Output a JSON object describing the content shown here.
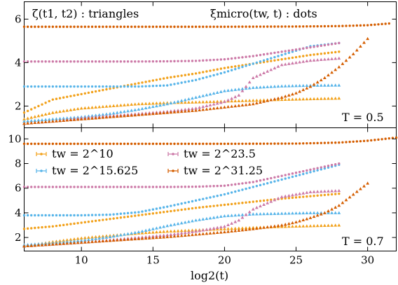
{
  "chart_data": [
    {
      "type": "scatter",
      "panel": "top",
      "title": "",
      "xlabel": "",
      "ylabel": "",
      "xlim": [
        6,
        32
      ],
      "ylim": [
        1.0,
        6.8
      ],
      "yticks": [
        2,
        4,
        6
      ],
      "xticks": [
        10,
        15,
        20,
        25,
        30
      ],
      "grid": false,
      "annotations": {
        "left": "ζ(t1, t2) : triangles",
        "right": "ξmicro(tw, t) : dots",
        "temperature": "T = 0.5"
      },
      "series": [
        {
          "name": "tw = 2^10",
          "color": "#f2a11a",
          "marker": "dot",
          "x": [
            6,
            8,
            10,
            12,
            14,
            16,
            18,
            20,
            22,
            24,
            26,
            28
          ],
          "values": [
            1.7,
            2.3,
            2.55,
            2.8,
            3.05,
            3.3,
            3.5,
            3.75,
            3.95,
            4.15,
            4.35,
            4.5
          ]
        },
        {
          "name": "tw = 2^10",
          "color": "#f2a11a",
          "marker": "triangle",
          "x": [
            6,
            8,
            10,
            12,
            14,
            16,
            18,
            20,
            22,
            24,
            26,
            28
          ],
          "values": [
            1.4,
            1.7,
            1.9,
            2.0,
            2.1,
            2.15,
            2.18,
            2.22,
            2.26,
            2.3,
            2.33,
            2.36
          ]
        },
        {
          "name": "tw = 2^15.625",
          "color": "#56b4e9",
          "marker": "dot",
          "x": [
            6,
            8,
            10,
            12,
            14,
            16,
            18,
            20,
            22,
            24,
            26,
            28
          ],
          "values": [
            2.9,
            2.9,
            2.9,
            2.9,
            2.9,
            2.95,
            3.2,
            3.55,
            3.95,
            4.35,
            4.75,
            4.9
          ]
        },
        {
          "name": "tw = 2^15.625",
          "color": "#56b4e9",
          "marker": "triangle",
          "x": [
            6,
            8,
            10,
            12,
            14,
            16,
            18,
            20,
            22,
            24,
            26,
            28
          ],
          "values": [
            1.3,
            1.4,
            1.5,
            1.65,
            1.85,
            2.1,
            2.4,
            2.7,
            2.85,
            2.92,
            2.95,
            2.96
          ]
        },
        {
          "name": "tw = 2^23.5",
          "color": "#cc79a7",
          "marker": "dot",
          "x": [
            6,
            8,
            10,
            12,
            14,
            16,
            18,
            20,
            22,
            24,
            26,
            28
          ],
          "values": [
            4.05,
            4.05,
            4.05,
            4.05,
            4.05,
            4.06,
            4.08,
            4.15,
            4.3,
            4.5,
            4.7,
            4.9
          ]
        },
        {
          "name": "tw = 2^23.5",
          "color": "#cc79a7",
          "marker": "triangle",
          "x": [
            6,
            8,
            10,
            12,
            14,
            16,
            18,
            20,
            21,
            22,
            24,
            26,
            28
          ],
          "values": [
            1.2,
            1.3,
            1.45,
            1.55,
            1.65,
            1.75,
            1.9,
            2.2,
            2.5,
            3.3,
            3.9,
            4.1,
            4.2
          ]
        },
        {
          "name": "tw = 2^31.25",
          "color": "#d55e00",
          "marker": "dot",
          "x": [
            6,
            10,
            15,
            20,
            25,
            28,
            30,
            31.5
          ],
          "values": [
            5.65,
            5.65,
            5.65,
            5.65,
            5.66,
            5.68,
            5.72,
            5.8
          ]
        },
        {
          "name": "tw = 2^31.25",
          "color": "#d55e00",
          "marker": "triangle",
          "x": [
            6,
            8,
            10,
            12,
            14,
            16,
            18,
            20,
            22,
            24,
            25,
            26,
            27,
            28,
            29,
            30
          ],
          "values": [
            1.2,
            1.3,
            1.4,
            1.5,
            1.6,
            1.7,
            1.8,
            1.95,
            2.1,
            2.4,
            2.6,
            2.9,
            3.3,
            3.8,
            4.4,
            5.1
          ]
        }
      ]
    },
    {
      "type": "scatter",
      "panel": "bottom",
      "title": "",
      "xlabel": "log2(t)",
      "ylabel": "",
      "xlim": [
        6,
        32
      ],
      "ylim": [
        0.9,
        10.9
      ],
      "yticks": [
        2,
        4,
        6,
        8,
        10
      ],
      "xticks": [
        10,
        15,
        20,
        25,
        30
      ],
      "grid": false,
      "annotations": {
        "temperature": "T = 0.7"
      },
      "legend": {
        "placement": "upper-left",
        "entries": [
          {
            "label": "tw = 2^10",
            "color": "#f2a11a"
          },
          {
            "label": "tw = 2^15.625",
            "color": "#56b4e9"
          },
          {
            "label": "tw = 2^23.5",
            "color": "#cc79a7"
          },
          {
            "label": "tw = 2^31.25",
            "color": "#d55e00"
          }
        ]
      },
      "series": [
        {
          "name": "tw = 2^10",
          "color": "#f2a11a",
          "marker": "dot",
          "x": [
            6,
            8,
            10,
            12,
            14,
            16,
            18,
            20,
            22,
            24,
            26,
            28
          ],
          "values": [
            2.7,
            2.9,
            3.2,
            3.5,
            3.8,
            4.1,
            4.4,
            4.65,
            4.9,
            5.15,
            5.35,
            5.55
          ]
        },
        {
          "name": "tw = 2^10",
          "color": "#f2a11a",
          "marker": "triangle",
          "x": [
            6,
            8,
            10,
            12,
            14,
            16,
            18,
            20,
            22,
            24,
            26,
            28
          ],
          "values": [
            1.3,
            1.65,
            1.95,
            2.15,
            2.35,
            2.5,
            2.6,
            2.7,
            2.8,
            2.88,
            2.94,
            3.0
          ]
        },
        {
          "name": "tw = 2^15.625",
          "color": "#56b4e9",
          "marker": "dot",
          "x": [
            6,
            8,
            10,
            12,
            14,
            16,
            18,
            20,
            22,
            24,
            26,
            28
          ],
          "values": [
            3.8,
            3.8,
            3.8,
            3.85,
            4.05,
            4.5,
            5.0,
            5.5,
            6.1,
            6.7,
            7.3,
            7.9
          ]
        },
        {
          "name": "tw = 2^15.625",
          "color": "#56b4e9",
          "marker": "triangle",
          "x": [
            6,
            8,
            10,
            12,
            14,
            16,
            18,
            20,
            22,
            24,
            26,
            28
          ],
          "values": [
            1.4,
            1.55,
            1.75,
            2.05,
            2.45,
            2.95,
            3.4,
            3.75,
            3.9,
            3.95,
            4.0,
            4.0
          ]
        },
        {
          "name": "tw = 2^23.5",
          "color": "#cc79a7",
          "marker": "dot",
          "x": [
            6,
            8,
            10,
            12,
            14,
            16,
            18,
            20,
            22,
            24,
            26,
            28
          ],
          "values": [
            6.1,
            6.1,
            6.1,
            6.1,
            6.1,
            6.1,
            6.12,
            6.2,
            6.5,
            7.0,
            7.5,
            8.0
          ]
        },
        {
          "name": "tw = 2^23.5",
          "color": "#cc79a7",
          "marker": "triangle",
          "x": [
            6,
            8,
            10,
            12,
            14,
            16,
            18,
            20,
            21,
            22,
            24,
            26,
            28
          ],
          "values": [
            1.3,
            1.45,
            1.6,
            1.8,
            2.0,
            2.2,
            2.5,
            2.9,
            3.4,
            4.3,
            5.3,
            5.7,
            5.8
          ]
        },
        {
          "name": "tw = 2^31.25",
          "color": "#d55e00",
          "marker": "dot",
          "x": [
            6,
            10,
            15,
            20,
            25,
            28,
            30,
            32
          ],
          "values": [
            9.6,
            9.6,
            9.6,
            9.6,
            9.62,
            9.7,
            9.85,
            10.1
          ]
        },
        {
          "name": "tw = 2^31.25",
          "color": "#d55e00",
          "marker": "triangle",
          "x": [
            6,
            8,
            10,
            12,
            14,
            16,
            18,
            20,
            22,
            24,
            25,
            26,
            27,
            28,
            29,
            30
          ],
          "values": [
            1.3,
            1.45,
            1.6,
            1.75,
            1.9,
            2.05,
            2.25,
            2.45,
            2.7,
            3.0,
            3.25,
            3.6,
            4.0,
            4.6,
            5.5,
            6.4
          ]
        }
      ]
    }
  ]
}
